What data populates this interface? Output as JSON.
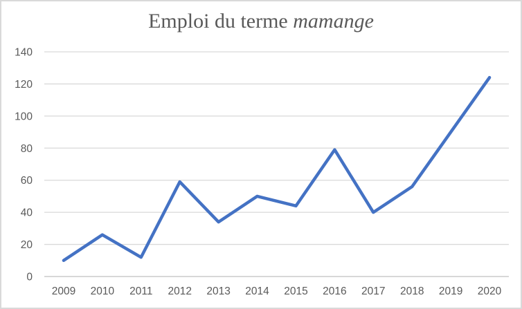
{
  "window": {
    "background_color": "#ffffff",
    "border_color": "#d9d9d9"
  },
  "title": {
    "full": "Emploi du terme mamange",
    "regular_part": "Emploi du terme ",
    "italic_part": "mamange",
    "color": "#595959"
  },
  "chart_data": {
    "type": "line",
    "title": "Emploi du terme mamange",
    "categories": [
      "2009",
      "2010",
      "2011",
      "2012",
      "2013",
      "2014",
      "2015",
      "2016",
      "2017",
      "2018",
      "2019",
      "2020"
    ],
    "series": [
      {
        "name": "Emploi du terme mamange",
        "values": [
          10,
          26,
          12,
          59,
          34,
          50,
          44,
          79,
          40,
          56,
          90,
          124
        ],
        "color": "#4472C4",
        "line_width": 4.5
      }
    ],
    "xlabel": "",
    "ylabel": "",
    "ylim": [
      0,
      140
    ],
    "ytick_interval": 20,
    "yticks": [
      0,
      20,
      40,
      60,
      80,
      100,
      120,
      140
    ],
    "grid": true,
    "gridline_color": "#d9d9d9",
    "axis_line_color": "#bfbfbf",
    "tick_label_color": "#595959",
    "legend_position": "none"
  }
}
